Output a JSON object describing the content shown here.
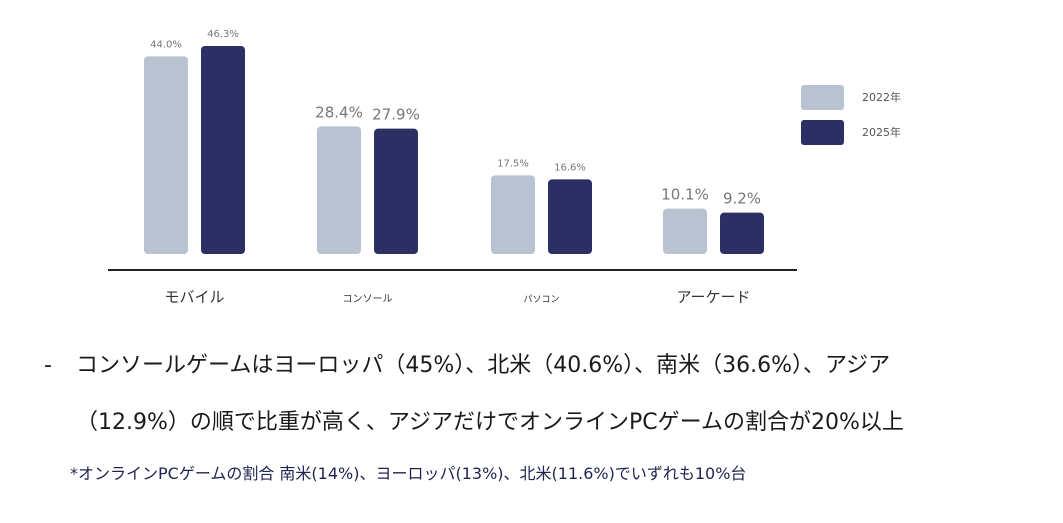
{
  "chart_data": {
    "type": "bar",
    "categories": [
      "モバイル",
      "コンソール",
      "パソコン",
      "アーケード"
    ],
    "series": [
      {
        "name": "2022年",
        "values": [
          44.0,
          28.4,
          17.5,
          10.1
        ],
        "labels": [
          "44.0%",
          "28.4%",
          "17.5%",
          "10.1%"
        ],
        "color": "#b9c2d0"
      },
      {
        "name": "2025年",
        "values": [
          46.3,
          27.9,
          16.6,
          9.2
        ],
        "labels": [
          "46.3%",
          "27.9%",
          "16.6%",
          "9.2%"
        ],
        "color": "#2b2f63"
      }
    ],
    "ylim": [
      0,
      50
    ],
    "grid": false,
    "legend_position": "right",
    "title": "",
    "xlabel": "",
    "ylabel": ""
  },
  "notes": {
    "dash": "-",
    "line1": "コンソールゲームはヨーロッパ（45%）、北米（40.6%）、南米（36.6%）、アジア",
    "line2": "（12.9%）の順で比重が高く、アジアだけでオンラインPCゲームの割合が20%以上",
    "footnote": "*オンラインPCゲームの割合 南米(14%)、ヨーロッパ(13%)、北米(11.6%)でいずれも10%台"
  }
}
